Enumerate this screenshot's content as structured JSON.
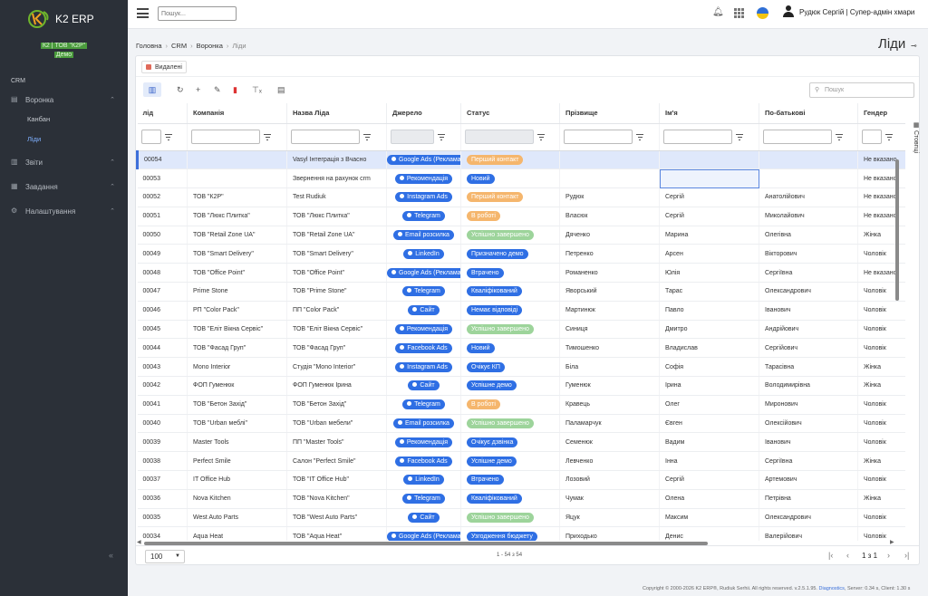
{
  "sidebar": {
    "app_name": "K2 ERP",
    "org_line1": "К2 | ТОВ \"К2Р\"",
    "org_line2": "Демо",
    "section": "CRM",
    "items": [
      {
        "label": "Воронка",
        "icon": "document-icon"
      },
      {
        "label": "Канбан",
        "sub": true
      },
      {
        "label": "Ліди",
        "sub": true,
        "active": true
      },
      {
        "label": "Звіти",
        "icon": "chart-icon"
      },
      {
        "label": "Завдання",
        "icon": "calendar-icon"
      },
      {
        "label": "Налаштування",
        "icon": "gear-icon"
      }
    ]
  },
  "topbar": {
    "search_placeholder": "Пошук...",
    "user_name": "Рудюк Сергій | Супер-адмін хмари"
  },
  "breadcrumb": [
    "Головна",
    "CRM",
    "Воронка",
    "Ліди"
  ],
  "page_title": "Ліди",
  "deleted_label": "Видалені",
  "grid_search_placeholder": "Пошук",
  "columns_tab": "Стовпці",
  "columns": [
    "лід",
    "Компанія",
    "Назва Ліда",
    "Джерело",
    "Статус",
    "Прізвище",
    "Ім'я",
    "По-батькові",
    "Гендер"
  ],
  "rows": [
    {
      "id": "00054",
      "company": "",
      "name": "Vasyl Інтеграція з Вчасно",
      "source": "Google Ads (Реклама)",
      "status": "Перший контакт",
      "st": "orange",
      "last": "",
      "first": "",
      "middle": "",
      "gender": "Не вказано"
    },
    {
      "id": "00053",
      "company": "",
      "name": "Звернення на рахунок crm",
      "source": "Рекомендація",
      "status": "Новий",
      "st": "blue",
      "last": "",
      "first": "",
      "middle": "",
      "gender": "Не вказано"
    },
    {
      "id": "00052",
      "company": "ТОВ \"К2Р\"",
      "name": "Test Rudiuk",
      "source": "Instagram Ads",
      "status": "Перший контакт",
      "st": "orange",
      "last": "Рудюк",
      "first": "Сергій",
      "middle": "Анатолійович",
      "gender": "Не вказано"
    },
    {
      "id": "00051",
      "company": "ТОВ \"Люкс Плитка\"",
      "name": "ТОВ \"Люкс Плитка\"",
      "source": "Telegram",
      "status": "В роботі",
      "st": "orange",
      "last": "Власюк",
      "first": "Сергій",
      "middle": "Миколайович",
      "gender": "Не вказано"
    },
    {
      "id": "00050",
      "company": "ТОВ \"Retail Zone UA\"",
      "name": "ТОВ \"Retail Zone UA\"",
      "source": "Email розсилка",
      "status": "Успішно завершено",
      "st": "green",
      "last": "Дяченко",
      "first": "Марина",
      "middle": "Олегівна",
      "gender": "Жінка"
    },
    {
      "id": "00049",
      "company": "ТОВ \"Smart Delivery\"",
      "name": "ТОВ \"Smart Delivery\"",
      "source": "LinkedIn",
      "status": "Призначено демо",
      "st": "blue",
      "last": "Петренко",
      "first": "Арсен",
      "middle": "Вікторович",
      "gender": "Чоловік"
    },
    {
      "id": "00048",
      "company": "ТОВ \"Office Point\"",
      "name": "ТОВ \"Office Point\"",
      "source": "Google Ads (Реклама)",
      "status": "Втрачено",
      "st": "blue",
      "last": "Романенко",
      "first": "Юлія",
      "middle": "Сергіївна",
      "gender": "Не вказано"
    },
    {
      "id": "00047",
      "company": "Prime Stone",
      "name": "ТОВ \"Prime Stone\"",
      "source": "Telegram",
      "status": "Кваліфікований",
      "st": "blue",
      "last": "Яворський",
      "first": "Тарас",
      "middle": "Олександрович",
      "gender": "Чоловік"
    },
    {
      "id": "00046",
      "company": "РП \"Color Pack\"",
      "name": "ПП \"Color Pack\"",
      "source": "Сайт",
      "status": "Немає відповіді",
      "st": "blue",
      "last": "Мартинюк",
      "first": "Павло",
      "middle": "Іванович",
      "gender": "Чоловік"
    },
    {
      "id": "00045",
      "company": "ТОВ \"Еліт Вікна Сервіс\"",
      "name": "ТОВ \"Еліт Вікна Сервіс\"",
      "source": "Рекомендація",
      "status": "Успішно завершено",
      "st": "green",
      "last": "Синиця",
      "first": "Дмитро",
      "middle": "Андрійович",
      "gender": "Чоловік"
    },
    {
      "id": "00044",
      "company": "ТОВ \"Фасад Груп\"",
      "name": "ТОВ \"Фасад Груп\"",
      "source": "Facebook Ads",
      "status": "Новий",
      "st": "blue",
      "last": "Тимошенко",
      "first": "Владислав",
      "middle": "Сергійович",
      "gender": "Чоловік"
    },
    {
      "id": "00043",
      "company": "Mono Interior",
      "name": "Студія \"Mono Interior\"",
      "source": "Instagram Ads",
      "status": "Очікує КП",
      "st": "blue",
      "last": "Біла",
      "first": "Софія",
      "middle": "Тарасівна",
      "gender": "Жінка"
    },
    {
      "id": "00042",
      "company": "ФОП Гуменюк",
      "name": "ФОП Гуменюк Ірина",
      "source": "Сайт",
      "status": "Успішне демо",
      "st": "blue",
      "last": "Гуменюк",
      "first": "Ірина",
      "middle": "Володимирівна",
      "gender": "Жінка"
    },
    {
      "id": "00041",
      "company": "ТОВ \"Бетон Захід\"",
      "name": "ТОВ \"Бетон Захід\"",
      "source": "Telegram",
      "status": "В роботі",
      "st": "orange",
      "last": "Кравець",
      "first": "Олег",
      "middle": "Миронович",
      "gender": "Чоловік"
    },
    {
      "id": "00040",
      "company": "ТОВ \"Urban меблі\"",
      "name": "ТОВ \"Urban мебели\"",
      "source": "Email розсилка",
      "status": "Успішно завершено",
      "st": "green",
      "last": "Паламарчук",
      "first": "Євген",
      "middle": "Олексійович",
      "gender": "Чоловік"
    },
    {
      "id": "00039",
      "company": "Master Tools",
      "name": "ПП \"Master Tools\"",
      "source": "Рекомендація",
      "status": "Очікує дзвінка",
      "st": "blue",
      "last": "Семенюк",
      "first": "Вадим",
      "middle": "Іванович",
      "gender": "Чоловік"
    },
    {
      "id": "00038",
      "company": "Perfect Smile",
      "name": "Салон \"Perfect Smile\"",
      "source": "Facebook Ads",
      "status": "Успішне демо",
      "st": "blue",
      "last": "Левченко",
      "first": "Інна",
      "middle": "Сергіївна",
      "gender": "Жінка"
    },
    {
      "id": "00037",
      "company": "IT Office Hub",
      "name": "ТОВ \"IT Office Hub\"",
      "source": "LinkedIn",
      "status": "Втрачено",
      "st": "blue",
      "last": "Лозовий",
      "first": "Сергій",
      "middle": "Артемович",
      "gender": "Чоловік"
    },
    {
      "id": "00036",
      "company": "Nova Kitchen",
      "name": "ТОВ \"Nova Kitchen\"",
      "source": "Telegram",
      "status": "Кваліфікований",
      "st": "blue",
      "last": "Чумак",
      "first": "Олена",
      "middle": "Петрівна",
      "gender": "Жінка"
    },
    {
      "id": "00035",
      "company": "West Auto Parts",
      "name": "ТОВ \"West Auto Parts\"",
      "source": "Сайт",
      "status": "Успішно завершено",
      "st": "green",
      "last": "Яцук",
      "first": "Максим",
      "middle": "Олександрович",
      "gender": "Чоловік"
    },
    {
      "id": "00034",
      "company": "Aqua Heat",
      "name": "ТОВ \"Aqua Heat\"",
      "source": "Google Ads (Реклама)",
      "status": "Узгодження бюджету",
      "st": "blue",
      "last": "Приходько",
      "first": "Денис",
      "middle": "Валерійович",
      "gender": "Чоловік"
    }
  ],
  "pager": {
    "page_size": "100",
    "info": "1 - 54 з 54",
    "page": "1 з 1"
  },
  "footer": {
    "copyright": "Copyright © 2000-2026 K2 ERP®, Rudiuk Serhii. All rights reserved. v.2.5.1.95.",
    "link": "Diagnostics",
    "stats": ", Server: 0.34 s, Client: 1.30 s"
  },
  "colors": {
    "sidebar": "#2b3038",
    "accent": "#2f6fe4",
    "orange": "#f5b66d",
    "green": "#9dd49b"
  }
}
